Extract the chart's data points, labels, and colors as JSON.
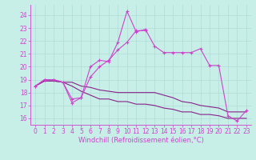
{
  "title": "",
  "xlabel": "Windchill (Refroidissement éolien,°C)",
  "bg_color": "#c8eee8",
  "grid_color": "#b0ddd8",
  "line_color_bright": "#cc44cc",
  "line_color_dark": "#882288",
  "xmin": -0.5,
  "xmax": 23.5,
  "ymin": 15.5,
  "ymax": 24.8,
  "yticks": [
    16,
    17,
    18,
    19,
    20,
    21,
    22,
    23,
    24
  ],
  "xticks": [
    0,
    1,
    2,
    3,
    4,
    5,
    6,
    7,
    8,
    9,
    10,
    11,
    12,
    13,
    14,
    15,
    16,
    17,
    18,
    19,
    20,
    21,
    22,
    23
  ],
  "line1_x": [
    0,
    1,
    2,
    3,
    4,
    5,
    6,
    7,
    8,
    9,
    10,
    11,
    12,
    13,
    14,
    15,
    16,
    17,
    18,
    19,
    20,
    21,
    22,
    23
  ],
  "line1_y": [
    18.5,
    19.0,
    19.0,
    18.8,
    17.5,
    17.6,
    20.0,
    20.5,
    20.4,
    21.9,
    24.3,
    22.7,
    22.9,
    21.6,
    21.1,
    21.1,
    21.1,
    21.1,
    21.4,
    20.1,
    20.1,
    16.2,
    15.8,
    16.6
  ],
  "line2_x": [
    0,
    1,
    2,
    3,
    4,
    5,
    6,
    7,
    8,
    9,
    10,
    11,
    12,
    13,
    14,
    15,
    16,
    17,
    18,
    19,
    20,
    21,
    22,
    23
  ],
  "line2_y": [
    18.5,
    19.0,
    19.0,
    18.8,
    17.2,
    17.6,
    19.2,
    20.0,
    20.5,
    21.3,
    21.9,
    22.8,
    22.8,
    null,
    null,
    null,
    null,
    null,
    null,
    null,
    null,
    null,
    null,
    null
  ],
  "line3_x": [
    0,
    1,
    2,
    3,
    4,
    5,
    6,
    7,
    8,
    9,
    10,
    11,
    12,
    13,
    14,
    15,
    16,
    17,
    18,
    19,
    20,
    21,
    22,
    23
  ],
  "line3_y": [
    18.5,
    18.9,
    18.9,
    18.8,
    18.8,
    18.5,
    18.4,
    18.2,
    18.1,
    18.0,
    18.0,
    18.0,
    18.0,
    18.0,
    17.8,
    17.6,
    17.3,
    17.2,
    17.0,
    16.9,
    16.8,
    16.5,
    16.5,
    16.5
  ],
  "line4_x": [
    0,
    1,
    2,
    3,
    4,
    5,
    6,
    7,
    8,
    9,
    10,
    11,
    12,
    13,
    14,
    15,
    16,
    17,
    18,
    19,
    20,
    21,
    22,
    23
  ],
  "line4_y": [
    18.5,
    18.9,
    18.9,
    18.8,
    18.5,
    18.1,
    17.8,
    17.5,
    17.5,
    17.3,
    17.3,
    17.1,
    17.1,
    17.0,
    16.8,
    16.7,
    16.5,
    16.5,
    16.3,
    16.3,
    16.2,
    16.0,
    16.0,
    16.0
  ],
  "tick_fontsize": 5.5,
  "xlabel_fontsize": 6.0
}
